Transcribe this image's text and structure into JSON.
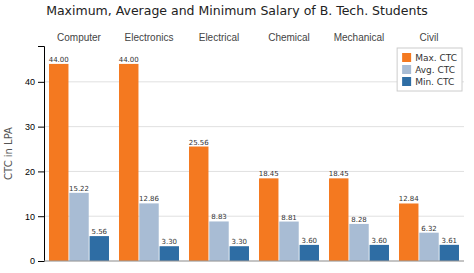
{
  "chart_data": {
    "type": "bar",
    "title": "Maximum, Average and Minimum Salary of B. Tech. Students",
    "ylabel": "CTC in LPA",
    "categories": [
      "Computer",
      "Electronics",
      "Electrical",
      "Chemical",
      "Mechanical",
      "Civil"
    ],
    "series": [
      {
        "name": "Max. CTC",
        "color": "#f47920",
        "values": [
          44.0,
          44.0,
          25.56,
          18.45,
          18.45,
          12.84
        ],
        "value_labels": [
          "44.00",
          "44.00",
          "25.56",
          "18.45",
          "18.45",
          "12.84"
        ]
      },
      {
        "name": "Avg. CTC",
        "color": "#a8bcd4",
        "values": [
          15.22,
          12.86,
          8.83,
          8.81,
          8.28,
          6.32
        ],
        "value_labels": [
          "15.22",
          "12.86",
          "8.83",
          "8.81",
          "8.28",
          "6.32"
        ]
      },
      {
        "name": "Min. CTC",
        "color": "#2e6da4",
        "values": [
          5.56,
          3.3,
          3.3,
          3.6,
          3.6,
          3.61
        ],
        "value_labels": [
          "5.56",
          "3.30",
          "3.30",
          "3.60",
          "3.60",
          "3.61"
        ]
      }
    ],
    "ylim": [
      0,
      48
    ],
    "yticks": [
      0,
      10,
      20,
      30,
      40
    ],
    "grid": true,
    "legend": "upper right",
    "data_labels": true
  }
}
